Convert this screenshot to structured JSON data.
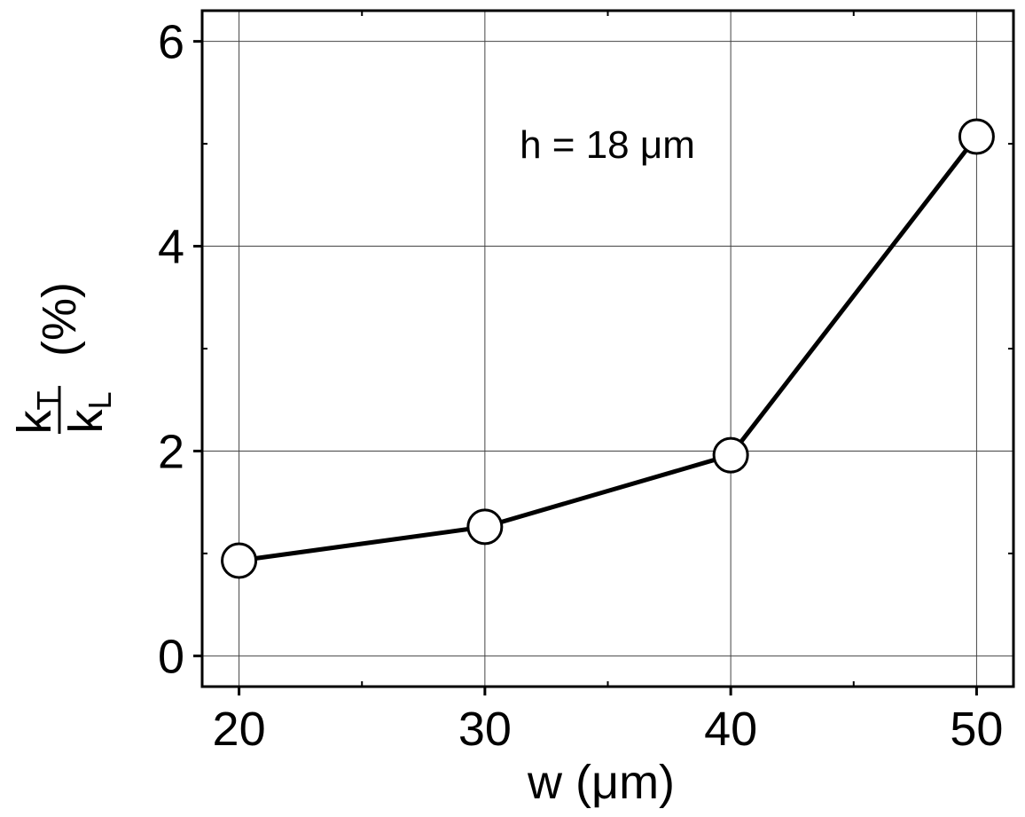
{
  "chart_data": {
    "type": "line",
    "x": [
      20,
      30,
      40,
      50
    ],
    "series": [
      {
        "values": [
          0.93,
          1.26,
          1.96,
          5.07
        ]
      }
    ],
    "xticks": [
      "20",
      "30",
      "40",
      "50"
    ],
    "yticks": [
      "0",
      "2",
      "4",
      "6"
    ],
    "xlabel": "w (μm)",
    "ylabel": {
      "numerator": "k",
      "numerator_sub": "T",
      "denominator": "k",
      "denominator_sub": "L",
      "unit": "(%)"
    },
    "annotation": "h = 18 μm",
    "xlim": [
      18.5,
      51.5
    ],
    "ylim": [
      -0.3,
      6.3
    ],
    "grid": true,
    "line_color": "#000000",
    "marker_fill": "#ffffff",
    "marker_edge": "#000000"
  }
}
